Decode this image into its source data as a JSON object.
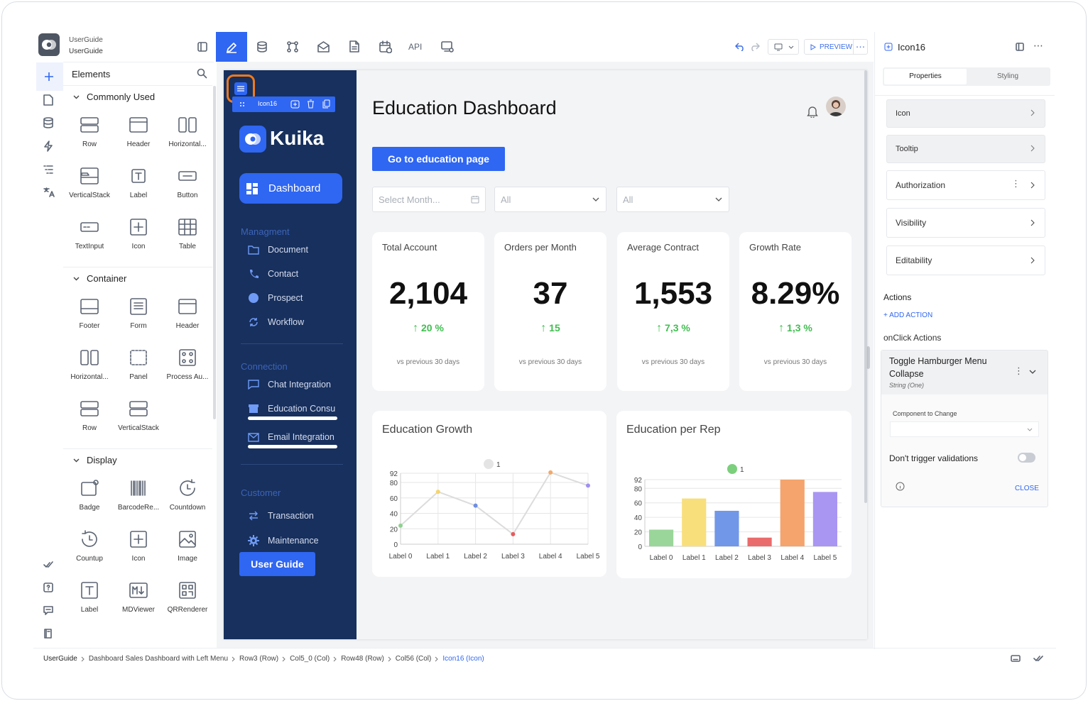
{
  "project": {
    "title": "UserGuide",
    "subtitle": "UserGuide"
  },
  "toolbar": {
    "api_label": "API",
    "preview_label": "PREVIEW"
  },
  "elements_panel": {
    "title": "Elements",
    "sections": [
      {
        "name": "Commonly Used",
        "items": [
          "Row",
          "Header",
          "Horizontal...",
          "VerticalStack",
          "Label",
          "Button",
          "TextInput",
          "Icon",
          "Table"
        ]
      },
      {
        "name": "Container",
        "items": [
          "Footer",
          "Form",
          "Header",
          "Horizontal...",
          "Panel",
          "Process Au...",
          "Row",
          "VerticalStack"
        ]
      },
      {
        "name": "Display",
        "items": [
          "Badge",
          "BarcodeRe...",
          "Countdown",
          "Countup",
          "Icon",
          "Image",
          "Label",
          "MDViewer",
          "QRRenderer"
        ]
      }
    ]
  },
  "canvas": {
    "selected_tag": "Icon16",
    "brand": "Kuika",
    "nav_active": "Dashboard",
    "nav_sections": [
      {
        "title": "Managment",
        "items": [
          "Document",
          "Contact",
          "Prospect",
          "Workflow"
        ]
      },
      {
        "title": "Connection",
        "items": [
          "Chat Integration",
          "Education Consu",
          "Email Integration"
        ]
      },
      {
        "title": "Customer",
        "items": [
          "Transaction",
          "Maintenance"
        ]
      }
    ],
    "user_guide_button": "User Guide",
    "page_title": "Education Dashboard",
    "cta_button": "Go to education page",
    "filters": {
      "month_placeholder": "Select Month...",
      "filter2": "All",
      "filter3": "All"
    },
    "kpis": [
      {
        "title": "Total Account",
        "value": "2,104",
        "delta": "20 %",
        "sub": "vs previous 30 days"
      },
      {
        "title": "Orders per Month",
        "value": "37",
        "delta": "15",
        "sub": "vs previous 30 days"
      },
      {
        "title": "Average Contract",
        "value": "1,553",
        "delta": "7,3 %",
        "sub": "vs previous 30 days"
      },
      {
        "title": "Growth Rate",
        "value": "8.29%",
        "delta": "1,3 %",
        "sub": "vs previous 30 days"
      }
    ]
  },
  "chart_data": [
    {
      "type": "line",
      "title": "Education Growth",
      "legend": "1",
      "categories": [
        "Label 0",
        "Label 1",
        "Label 2",
        "Label 3",
        "Label 4",
        "Label 5"
      ],
      "values": [
        24,
        68,
        50,
        13,
        93,
        76
      ],
      "point_colors": [
        "#8fd18e",
        "#f5d56e",
        "#6f8ee0",
        "#e85c5c",
        "#f4a86a",
        "#a08ff0"
      ],
      "yticks": [
        0,
        20,
        40,
        60,
        80,
        92
      ],
      "ylim": [
        0,
        92
      ]
    },
    {
      "type": "bar",
      "title": "Education per Rep",
      "legend": "1",
      "categories": [
        "Label 0",
        "Label 1",
        "Label 2",
        "Label 3",
        "Label 4",
        "Label 5"
      ],
      "values": [
        23,
        66,
        49,
        12,
        92,
        75
      ],
      "colors": [
        "#9ad69a",
        "#f8df7c",
        "#7097e8",
        "#ea6b6b",
        "#f4a46c",
        "#a996f2"
      ],
      "yticks": [
        0,
        20,
        40,
        60,
        80,
        92
      ],
      "ylim": [
        0,
        92
      ]
    }
  ],
  "properties_panel": {
    "title": "Icon16",
    "tabs": [
      "Properties",
      "Styling"
    ],
    "rows": [
      "Icon",
      "Tooltip",
      "Authorization",
      "Visibility",
      "Editability"
    ],
    "actions_title": "Actions",
    "add_action": "+ ADD ACTION",
    "onclick_title": "onClick Actions",
    "action": {
      "name": "Toggle Hamburger Menu Collapse",
      "type": "String (One)",
      "component_label": "Component to Change",
      "validation_label": "Don't trigger validations",
      "close": "CLOSE"
    }
  },
  "breadcrumb": [
    "UserGuide",
    "Dashboard Sales Dashboard with Left Menu",
    "Row3 (Row)",
    "Col5_0 (Col)",
    "Row48 (Row)",
    "Col56 (Col)",
    "Icon16 (Icon)"
  ]
}
